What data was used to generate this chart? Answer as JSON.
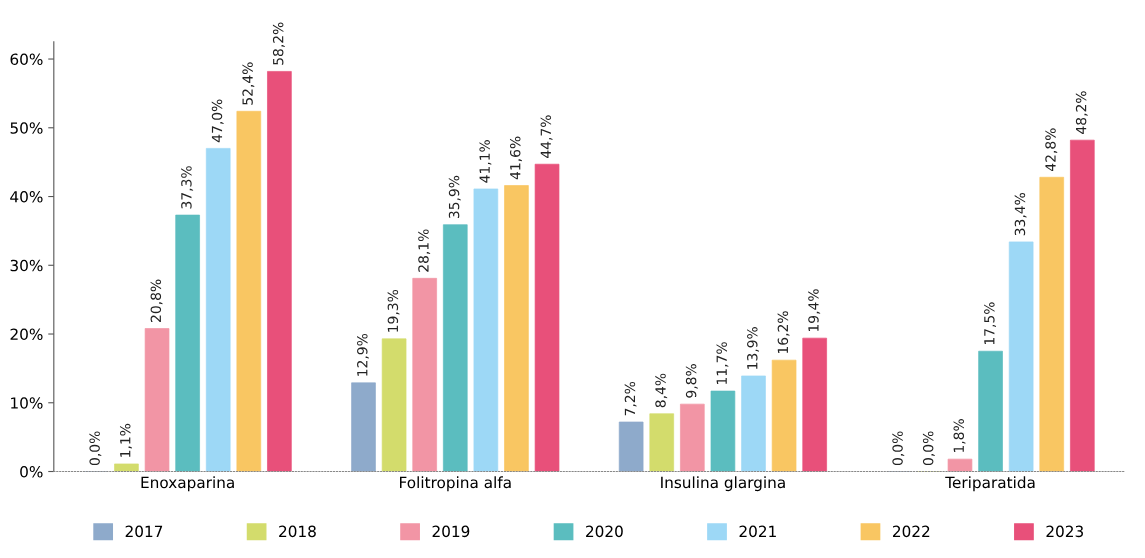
{
  "chart_data": {
    "type": "bar",
    "categories": [
      "Enoxaparina",
      "Folitropina alfa",
      "Insulina glargina",
      "Teriparatida"
    ],
    "series": [
      {
        "name": "2017",
        "color": "#8eaacb",
        "values": [
          0.0,
          12.9,
          7.2,
          0.0
        ],
        "value_labels": [
          "0,0%",
          "12,9%",
          "7,2%",
          "0,0%"
        ]
      },
      {
        "name": "2018",
        "color": "#d3dc6c",
        "values": [
          1.1,
          19.3,
          8.4,
          0.0
        ],
        "value_labels": [
          "1,1%",
          "19,3%",
          "8,4%",
          "0,0%"
        ]
      },
      {
        "name": "2019",
        "color": "#f295a5",
        "values": [
          20.8,
          28.1,
          9.8,
          1.8
        ],
        "value_labels": [
          "20,8%",
          "28,1%",
          "9,8%",
          "1,8%"
        ]
      },
      {
        "name": "2020",
        "color": "#5bbdbf",
        "values": [
          37.3,
          35.9,
          11.7,
          17.5
        ],
        "value_labels": [
          "37,3%",
          "35,9%",
          "11,7%",
          "17,5%"
        ]
      },
      {
        "name": "2021",
        "color": "#9dd8f6",
        "values": [
          47.0,
          41.1,
          13.9,
          33.4
        ],
        "value_labels": [
          "47,0%",
          "41,1%",
          "13,9%",
          "33,4%"
        ]
      },
      {
        "name": "2022",
        "color": "#f9c662",
        "values": [
          52.4,
          41.6,
          16.2,
          42.8
        ],
        "value_labels": [
          "52,4%",
          "41,6%",
          "16,2%",
          "42,8%"
        ]
      },
      {
        "name": "2023",
        "color": "#e8507a",
        "values": [
          58.2,
          44.7,
          19.4,
          48.2
        ],
        "value_labels": [
          "58,2%",
          "44,7%",
          "19,4%",
          "48,2%"
        ]
      }
    ],
    "ylim": [
      0,
      62.5
    ],
    "yticks": [
      {
        "value": 0,
        "label": "0%"
      },
      {
        "value": 10,
        "label": "10%"
      },
      {
        "value": 20,
        "label": "20%"
      },
      {
        "value": 30,
        "label": "30%"
      },
      {
        "value": 40,
        "label": "40%"
      },
      {
        "value": 50,
        "label": "50%"
      },
      {
        "value": 60,
        "label": "60%"
      }
    ],
    "grid": false,
    "legend": "bottom"
  }
}
